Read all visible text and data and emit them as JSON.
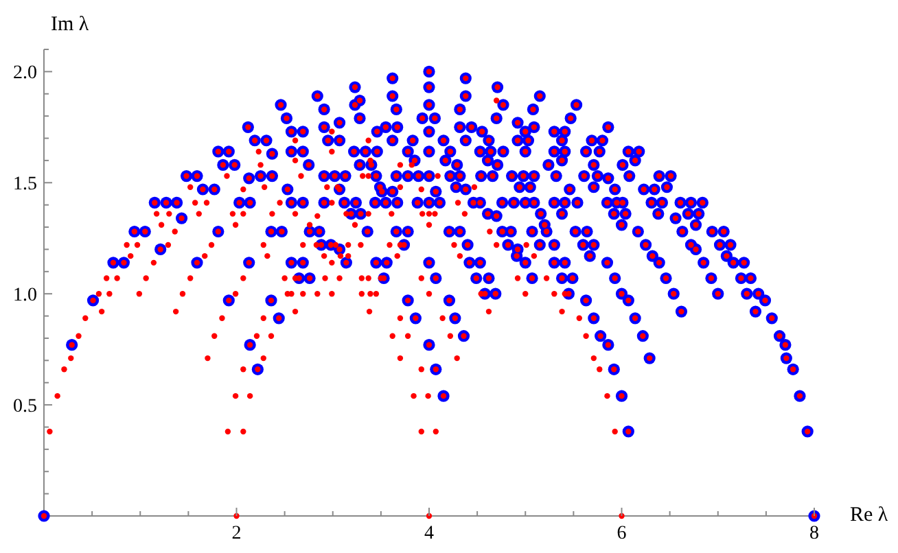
{
  "chart_data": {
    "type": "scatter",
    "xlabel": "Re λ",
    "ylabel": "Im λ",
    "xlim": [
      0,
      8
    ],
    "ylim": [
      0,
      2.1
    ],
    "xticks": [
      {
        "value": 0.5,
        "label": null
      },
      {
        "value": 1,
        "label": null
      },
      {
        "value": 1.5,
        "label": null
      },
      2,
      {
        "value": 2.5,
        "label": null
      },
      {
        "value": 3,
        "label": null
      },
      {
        "value": 3.5,
        "label": null
      },
      4,
      {
        "value": 4.5,
        "label": null
      },
      {
        "value": 5,
        "label": null
      },
      {
        "value": 5.5,
        "label": null
      },
      6,
      {
        "value": 6.5,
        "label": null
      },
      {
        "value": 7,
        "label": null
      },
      {
        "value": 7.5,
        "label": null
      },
      8
    ],
    "yticks": [
      {
        "value": 0.1,
        "label": null
      },
      {
        "value": 0.2,
        "label": null
      },
      {
        "value": 0.3,
        "label": null
      },
      {
        "value": 0.4,
        "label": null
      },
      0.5,
      {
        "value": 0.6,
        "label": null
      },
      {
        "value": 0.7,
        "label": null
      },
      {
        "value": 0.8,
        "label": null
      },
      {
        "value": 0.9,
        "label": null
      },
      {
        "value": 1,
        "label": "1.0"
      },
      {
        "value": 1.1,
        "label": null
      },
      {
        "value": 1.2,
        "label": null
      },
      {
        "value": 1.3,
        "label": null
      },
      {
        "value": 1.4,
        "label": null
      },
      1.5,
      {
        "value": 1.6,
        "label": null
      },
      {
        "value": 1.7,
        "label": null
      },
      {
        "value": 1.8,
        "label": null
      },
      {
        "value": 1.9,
        "label": null
      },
      {
        "value": 2,
        "label": "2.0"
      },
      {
        "value": 2.1,
        "label": null
      }
    ],
    "marker": "circle",
    "series": [
      {
        "color": "#0000ff",
        "x": [
          0,
          0.29,
          0.51,
          0.72,
          0.83,
          0.94,
          1.05,
          1.15,
          1.27,
          1.38,
          1.43,
          1.21,
          1.48,
          1.59,
          1.65,
          1.77,
          1.81,
          1.59,
          1.81,
          1.92,
          1.86,
          1.98,
          2.12,
          2.19,
          2.31,
          2.37,
          2.13,
          2.25,
          2.37,
          2.03,
          2.14,
          2.36,
          2.47,
          2.13,
          1.92,
          2.14,
          2.22,
          2.36,
          2.44,
          2.46,
          2.52,
          2.57,
          2.69,
          2.57,
          2.69,
          2.53,
          2.57,
          2.69,
          2.57,
          2.69,
          2.65,
          2.76,
          2.75,
          2.84,
          2.91,
          2.91,
          2.95,
          3.07,
          3.07,
          2.91,
          3.02,
          3.13,
          2.91,
          3.07,
          3.12,
          3.24,
          2.76,
          2.86,
          2.88,
          2.98,
          3.07,
          3.14,
          3.45,
          3.56,
          3.53,
          3.23,
          3.28,
          3.23,
          3.28,
          3.22,
          3.34,
          3.46,
          3.46,
          3.55,
          3.67,
          3.62,
          3.62,
          3.62,
          3.66,
          3.28,
          3.4,
          3.45,
          3.49,
          3.44,
          3.55,
          3.67,
          3.51,
          3.62,
          3.66,
          3.78,
          3.78,
          3.83,
          3.85,
          3.89,
          3.88,
          4,
          4.11,
          4,
          4.07,
          4,
          4,
          4,
          3.93,
          4.06,
          4,
          4,
          4.15,
          4.17,
          4.22,
          4.22,
          3.66,
          3.78,
          3.74,
          3.19,
          3.29,
          3.36,
          3.78,
          3.86,
          4,
          4.07,
          4,
          4.07,
          4.15,
          4.21,
          4.27,
          4.21,
          4.38,
          4.38,
          4.32,
          4.32,
          4.44,
          4.38,
          4.55,
          4.62,
          4.53,
          4.64,
          4.77,
          4.61,
          4.71,
          4.54,
          4.66,
          4.29,
          4.32,
          4.28,
          4.38,
          4.46,
          4.53,
          4.61,
          4.7,
          4.76,
          4.88,
          5,
          5.09,
          4.76,
          4.71,
          4.77,
          4.7,
          4.92,
          4.92,
          5,
          5.03,
          5,
          5.09,
          5.08,
          5.15,
          4.86,
          4.98,
          5.09,
          4.94,
          5.05,
          4.85,
          4.82,
          4.92,
          4.91,
          5,
          5.07,
          5.07,
          5.15,
          5.16,
          5.2,
          5.22,
          5.3,
          5.3,
          5.41,
          5.38,
          5.3,
          5.41,
          5.38,
          5.24,
          5.32,
          5.47,
          5.53,
          5.46,
          5.3,
          5.41,
          5.54,
          5.38,
          5.63,
          5.69,
          5.8,
          5.71,
          5.61,
          5.71,
          5.77,
          5.52,
          5.64,
          5.6,
          5.71,
          5.67,
          5.3,
          5.41,
          5.38,
          5.49,
          5.45,
          5.63,
          5.71,
          5.78,
          4.36,
          4.32,
          4.4,
          4.42,
          4.53,
          4.49,
          4.62,
          4.58,
          4.69,
          5.86,
          5.75,
          5.86,
          5.93,
          5.85,
          5.95,
          6.01,
          5.92,
          6.04,
          6,
          6.07,
          6.18,
          6.14,
          6.01,
          6.08,
          6.39,
          6.51,
          6.47,
          6.23,
          6.34,
          6.31,
          6.42,
          6.38,
          6.17,
          6.25,
          6.32,
          6.39,
          6.46,
          6.54,
          6.62,
          6.61,
          6.72,
          6.84,
          6.56,
          6.69,
          6.8,
          6.77,
          6.63,
          6.72,
          6.77,
          6.85,
          6.93,
          7,
          6.94,
          7.06,
          7.02,
          7.13,
          7.09,
          7.16,
          7.27,
          7.24,
          7.34,
          7.3,
          5.85,
          5.93,
          6,
          6.07,
          6.14,
          6.22,
          6.29,
          5.86,
          5.92,
          6,
          6.07,
          7.42,
          7.49,
          7.39,
          7.56,
          7.64,
          7.7,
          7.71,
          7.78,
          7.85,
          7.93,
          8
        ],
        "values": [
          0,
          0.77,
          0.97,
          1.14,
          1.14,
          1.28,
          1.28,
          1.41,
          1.41,
          1.41,
          1.34,
          1.2,
          1.53,
          1.53,
          1.47,
          1.47,
          1.28,
          1.14,
          1.64,
          1.64,
          1.58,
          1.58,
          1.75,
          1.69,
          1.69,
          1.63,
          1.52,
          1.53,
          1.53,
          1.41,
          1.41,
          1.28,
          1.28,
          1.14,
          0.97,
          0.77,
          0.66,
          0.97,
          0.89,
          1.85,
          1.79,
          1.73,
          1.73,
          1.64,
          1.64,
          1.47,
          1.41,
          1.41,
          1.14,
          1.14,
          1.07,
          1.07,
          1.58,
          1.89,
          1.83,
          1.75,
          1.69,
          1.69,
          1.77,
          1.53,
          1.53,
          1.53,
          1.41,
          1.47,
          1.41,
          1.41,
          1.28,
          1.28,
          1.22,
          1.22,
          1.2,
          1.14,
          1.14,
          1.14,
          1.07,
          1.93,
          1.87,
          1.85,
          1.79,
          1.64,
          1.64,
          1.64,
          1.73,
          1.75,
          1.75,
          1.69,
          1.97,
          1.89,
          1.83,
          1.58,
          1.58,
          1.53,
          1.48,
          1.41,
          1.41,
          1.41,
          1.46,
          1.46,
          1.53,
          1.53,
          1.64,
          1.69,
          1.6,
          1.53,
          1.41,
          1.41,
          1.41,
          1.53,
          1.46,
          2,
          1.93,
          1.85,
          1.79,
          1.79,
          1.73,
          1.64,
          1.69,
          1.6,
          1.64,
          1.53,
          1.28,
          1.28,
          1.22,
          1.36,
          1.36,
          1.28,
          0.97,
          0.89,
          1.14,
          1.07,
          0.77,
          0.66,
          0.54,
          0.97,
          0.89,
          1.28,
          1.97,
          1.89,
          1.83,
          1.75,
          1.75,
          1.69,
          1.73,
          1.69,
          1.64,
          1.64,
          1.64,
          1.6,
          1.58,
          1.53,
          1.53,
          1.58,
          1.53,
          1.48,
          1.47,
          1.41,
          1.41,
          1.36,
          1.35,
          1.41,
          1.41,
          1.41,
          1.41,
          1.28,
          1.93,
          1.85,
          1.79,
          1.77,
          1.69,
          1.73,
          1.69,
          1.64,
          1.75,
          1.83,
          1.89,
          1.53,
          1.53,
          1.53,
          1.48,
          1.48,
          1.28,
          1.22,
          1.2,
          1.17,
          1.14,
          1.07,
          1.28,
          1.22,
          1.36,
          1.31,
          1.28,
          1.22,
          1.73,
          1.73,
          1.69,
          1.64,
          1.64,
          1.6,
          1.58,
          1.53,
          1.79,
          1.85,
          1.47,
          1.41,
          1.41,
          1.41,
          1.36,
          1.64,
          1.69,
          1.69,
          1.58,
          1.53,
          1.48,
          1.64,
          1.28,
          1.28,
          1.22,
          1.22,
          1.17,
          1.14,
          1.14,
          1.07,
          1.07,
          1,
          0.97,
          0.89,
          0.81,
          0.81,
          1.28,
          1.22,
          1.14,
          1.14,
          1.07,
          1.07,
          1,
          1,
          1.75,
          1.53,
          1.52,
          1.47,
          1.41,
          1.41,
          1.41,
          1.36,
          1.36,
          1.31,
          1.64,
          1.64,
          1.6,
          1.58,
          1.53,
          1.53,
          1.53,
          1.48,
          1.47,
          1.47,
          1.41,
          1.41,
          1.36,
          1.28,
          1.22,
          1.17,
          1.14,
          1.07,
          1,
          0.92,
          1.41,
          1.41,
          1.41,
          1.34,
          1.36,
          1.36,
          1.31,
          1.28,
          1.22,
          1.2,
          1.14,
          1.07,
          1,
          1.28,
          1.28,
          1.22,
          1.22,
          1.17,
          1.14,
          1.14,
          1.07,
          1.07,
          1,
          1.14,
          1.07,
          1,
          0.97,
          0.89,
          0.81,
          0.71,
          0.77,
          0.66,
          0.54,
          0.38,
          1,
          0.97,
          0.92,
          0.89,
          0.81,
          0.77,
          0.71,
          0.66,
          0.54,
          0.38,
          0
        ]
      },
      {
        "color": "#ff0000",
        "x": [
          0,
          0.29,
          0.51,
          0.72,
          0.83,
          0.94,
          1.05,
          1.15,
          1.27,
          1.38,
          1.43,
          1.21,
          1.48,
          1.59,
          1.65,
          1.77,
          1.81,
          1.59,
          1.81,
          1.92,
          1.86,
          1.98,
          2.12,
          2.19,
          2.31,
          2.37,
          2.13,
          2.25,
          2.37,
          2.03,
          2.14,
          2.36,
          2.47,
          2.13,
          1.92,
          2.14,
          2.22,
          2.36,
          2.44,
          2.46,
          2.52,
          2.57,
          2.69,
          2.57,
          2.69,
          2.53,
          2.57,
          2.69,
          2.57,
          2.69,
          2.65,
          2.76,
          2.75,
          2.84,
          2.91,
          2.91,
          2.95,
          3.07,
          3.07,
          2.91,
          3.02,
          3.13,
          2.91,
          3.07,
          3.12,
          3.24,
          2.76,
          2.86,
          2.88,
          2.98,
          3.07,
          3.14,
          3.45,
          3.56,
          3.53,
          3.23,
          3.28,
          3.23,
          3.28,
          3.22,
          3.34,
          3.46,
          3.46,
          3.55,
          3.67,
          3.62,
          3.62,
          3.62,
          3.66,
          3.28,
          3.4,
          3.45,
          3.49,
          3.44,
          3.55,
          3.67,
          3.51,
          3.62,
          3.66,
          3.78,
          3.78,
          3.83,
          3.85,
          3.89,
          3.88,
          4,
          4.11,
          4,
          4.07,
          4,
          4,
          4,
          3.93,
          4.06,
          4,
          4,
          4.15,
          4.17,
          4.22,
          4.22,
          3.66,
          3.78,
          3.74,
          3.19,
          3.29,
          3.36,
          3.78,
          3.86,
          4,
          4.07,
          4,
          4.07,
          4.15,
          4.21,
          4.27,
          4.21,
          4.38,
          4.38,
          4.32,
          4.32,
          4.44,
          4.38,
          4.55,
          4.62,
          4.53,
          4.64,
          4.77,
          4.61,
          4.71,
          4.54,
          4.66,
          4.29,
          4.32,
          4.28,
          4.38,
          4.46,
          4.53,
          4.61,
          4.7,
          4.76,
          4.88,
          5,
          5.09,
          4.76,
          4.71,
          4.77,
          4.7,
          4.92,
          4.92,
          5,
          5.03,
          5,
          5.09,
          5.08,
          5.15,
          4.86,
          4.98,
          5.09,
          4.94,
          5.05,
          4.85,
          4.82,
          4.92,
          4.91,
          5,
          5.07,
          5.07,
          5.15,
          5.16,
          5.2,
          5.22,
          5.3,
          5.3,
          5.41,
          5.38,
          5.3,
          5.41,
          5.38,
          5.24,
          5.32,
          5.47,
          5.53,
          5.46,
          5.3,
          5.41,
          5.54,
          5.38,
          5.63,
          5.69,
          5.8,
          5.71,
          5.61,
          5.71,
          5.77,
          5.52,
          5.64,
          5.6,
          5.71,
          5.67,
          5.3,
          5.41,
          5.38,
          5.49,
          5.45,
          5.63,
          5.71,
          5.78,
          4.36,
          4.32,
          4.4,
          4.42,
          4.53,
          4.49,
          4.62,
          4.58,
          4.69,
          5.86,
          5.75,
          5.86,
          5.93,
          5.85,
          5.95,
          6.01,
          5.92,
          6.04,
          6,
          6.07,
          6.18,
          6.14,
          6.01,
          6.08,
          6.39,
          6.51,
          6.47,
          6.23,
          6.34,
          6.31,
          6.42,
          6.38,
          6.17,
          6.25,
          6.32,
          6.39,
          6.46,
          6.54,
          6.62,
          6.61,
          6.72,
          6.84,
          6.56,
          6.69,
          6.8,
          6.77,
          6.63,
          6.72,
          6.77,
          6.85,
          6.93,
          7,
          6.94,
          7.06,
          7.02,
          7.13,
          7.09,
          7.16,
          7.27,
          7.24,
          7.34,
          7.3,
          5.85,
          5.93,
          6,
          6.07,
          6.14,
          6.22,
          6.29,
          5.86,
          5.92,
          6,
          6.07,
          7.42,
          7.49,
          7.39,
          7.56,
          7.64,
          7.7,
          7.71,
          7.78,
          7.85,
          7.93,
          8,
          0.06,
          0.14,
          0.21,
          0.28,
          0.36,
          0.43,
          0.57,
          0.6,
          0.65,
          0.68,
          0.76,
          0.86,
          0.9,
          0.97,
          0.99,
          1.06,
          1.14,
          1.17,
          1.3,
          1.22,
          1.36,
          1.29,
          1.52,
          1.57,
          1.61,
          1.69,
          1.74,
          1.67,
          1.52,
          1.44,
          1.37,
          1.9,
          2.23,
          2.25,
          2.07,
          2.29,
          1.96,
          2.07,
          1.99,
          2.37,
          2.28,
          2.32,
          2.07,
          1.99,
          1.85,
          1.77,
          1.7,
          2.21,
          2.28,
          2.07,
          1.99,
          2.14,
          1.91,
          2.07,
          2,
          2.28,
          2.36,
          2.61,
          2.61,
          2.67,
          2.45,
          2.61,
          2.69,
          2.61,
          2.5,
          2.53,
          2.57,
          2.69,
          2.61,
          2.99,
          2.99,
          2.94,
          2.99,
          3.05,
          2.84,
          2.76,
          2.83,
          2.91,
          3.03,
          3.08,
          2.99,
          2.92,
          3.07,
          2.84,
          2.99,
          3.3,
          3.39,
          3.45,
          3.38,
          3.37,
          3.3,
          3.5,
          3.29,
          3.16,
          3.16,
          3.37,
          3.39,
          3.37,
          3.31,
          3.61,
          3.7,
          3.7,
          3.82,
          3.92,
          3.93,
          4,
          4.06,
          4,
          4.09,
          3.7,
          3.59,
          3.67,
          3.14,
          3.37,
          3.23,
          3.7,
          3.78,
          3.62,
          3.7,
          3.92,
          3.84,
          3.99,
          3.92,
          4.07,
          4,
          3.92,
          4,
          4.14,
          4.22,
          4.29,
          4.3,
          4.37,
          4.47,
          4.63,
          4.7,
          4.32,
          4.26,
          4.54,
          4.62,
          4.92,
          5,
          5.01,
          5.09,
          5.22,
          5.3,
          5.41,
          5.38,
          5.56,
          5.63,
          5.71,
          5.77,
          4.7,
          5.85,
          5.93,
          6
        ],
        "values": [
          0,
          0.77,
          0.97,
          1.14,
          1.14,
          1.28,
          1.28,
          1.41,
          1.41,
          1.41,
          1.34,
          1.2,
          1.53,
          1.53,
          1.47,
          1.47,
          1.28,
          1.14,
          1.64,
          1.64,
          1.58,
          1.58,
          1.75,
          1.69,
          1.69,
          1.63,
          1.52,
          1.53,
          1.53,
          1.41,
          1.41,
          1.28,
          1.28,
          1.14,
          0.97,
          0.77,
          0.66,
          0.97,
          0.89,
          1.85,
          1.79,
          1.73,
          1.73,
          1.64,
          1.64,
          1.47,
          1.41,
          1.41,
          1.14,
          1.14,
          1.07,
          1.07,
          1.58,
          1.89,
          1.83,
          1.75,
          1.69,
          1.69,
          1.77,
          1.53,
          1.53,
          1.53,
          1.41,
          1.47,
          1.41,
          1.41,
          1.28,
          1.28,
          1.22,
          1.22,
          1.2,
          1.14,
          1.14,
          1.14,
          1.07,
          1.93,
          1.87,
          1.85,
          1.79,
          1.64,
          1.64,
          1.64,
          1.73,
          1.75,
          1.75,
          1.69,
          1.97,
          1.89,
          1.83,
          1.58,
          1.58,
          1.53,
          1.48,
          1.41,
          1.41,
          1.41,
          1.46,
          1.46,
          1.53,
          1.53,
          1.64,
          1.69,
          1.6,
          1.53,
          1.41,
          1.41,
          1.41,
          1.53,
          1.46,
          2,
          1.93,
          1.85,
          1.79,
          1.79,
          1.73,
          1.64,
          1.69,
          1.6,
          1.64,
          1.53,
          1.28,
          1.28,
          1.22,
          1.36,
          1.36,
          1.28,
          0.97,
          0.89,
          1.14,
          1.07,
          0.77,
          0.66,
          0.54,
          0.97,
          0.89,
          1.28,
          1.97,
          1.89,
          1.83,
          1.75,
          1.75,
          1.69,
          1.73,
          1.69,
          1.64,
          1.64,
          1.64,
          1.6,
          1.58,
          1.53,
          1.53,
          1.58,
          1.53,
          1.48,
          1.47,
          1.41,
          1.41,
          1.36,
          1.35,
          1.41,
          1.41,
          1.41,
          1.41,
          1.28,
          1.93,
          1.85,
          1.79,
          1.77,
          1.69,
          1.73,
          1.69,
          1.64,
          1.75,
          1.83,
          1.89,
          1.53,
          1.53,
          1.53,
          1.48,
          1.48,
          1.28,
          1.22,
          1.2,
          1.17,
          1.14,
          1.07,
          1.28,
          1.22,
          1.36,
          1.31,
          1.28,
          1.22,
          1.73,
          1.73,
          1.69,
          1.64,
          1.64,
          1.6,
          1.58,
          1.53,
          1.79,
          1.85,
          1.47,
          1.41,
          1.41,
          1.41,
          1.36,
          1.64,
          1.69,
          1.69,
          1.58,
          1.53,
          1.48,
          1.64,
          1.28,
          1.28,
          1.22,
          1.22,
          1.17,
          1.14,
          1.14,
          1.07,
          1.07,
          1,
          0.97,
          0.89,
          0.81,
          0.81,
          1.28,
          1.22,
          1.14,
          1.14,
          1.07,
          1.07,
          1,
          1,
          1.75,
          1.53,
          1.52,
          1.47,
          1.41,
          1.41,
          1.41,
          1.36,
          1.36,
          1.31,
          1.64,
          1.64,
          1.6,
          1.58,
          1.53,
          1.53,
          1.53,
          1.48,
          1.47,
          1.47,
          1.41,
          1.41,
          1.36,
          1.28,
          1.22,
          1.17,
          1.14,
          1.07,
          1,
          0.92,
          1.41,
          1.41,
          1.41,
          1.34,
          1.36,
          1.36,
          1.31,
          1.28,
          1.22,
          1.2,
          1.14,
          1.07,
          1,
          1.28,
          1.28,
          1.22,
          1.22,
          1.17,
          1.14,
          1.14,
          1.07,
          1.07,
          1,
          1.14,
          1.07,
          1,
          0.97,
          0.89,
          0.81,
          0.71,
          0.77,
          0.66,
          0.54,
          0.38,
          1,
          0.97,
          0.92,
          0.89,
          0.81,
          0.77,
          0.71,
          0.66,
          0.54,
          0.38,
          0,
          0.38,
          0.54,
          0.66,
          0.71,
          0.81,
          0.89,
          1,
          0.92,
          1.07,
          1,
          1.07,
          1.22,
          1.17,
          1.22,
          1,
          1.07,
          1.14,
          1.36,
          1.36,
          1.31,
          1.28,
          1.22,
          1.48,
          1.41,
          1.36,
          1.41,
          1.22,
          1.17,
          1.07,
          1,
          0.92,
          1.53,
          1.64,
          1.58,
          1.47,
          1.48,
          1.36,
          1.36,
          1.31,
          1.36,
          1.22,
          1.17,
          1.07,
          1,
          0.89,
          0.81,
          0.71,
          0.81,
          0.71,
          0.66,
          0.54,
          0.54,
          0.38,
          0.38,
          0,
          0.89,
          0.81,
          1.69,
          1.6,
          1.53,
          1.41,
          1.36,
          1.22,
          1.07,
          1.07,
          1,
          1,
          1,
          0.92,
          1.73,
          1.64,
          1.48,
          1.41,
          1.48,
          1.35,
          1.31,
          1.22,
          1.17,
          1.22,
          1.17,
          1.14,
          1.07,
          1.07,
          1,
          1,
          1,
          1,
          1,
          0.92,
          1.07,
          1.07,
          1.07,
          1.22,
          1.22,
          1.17,
          1.69,
          1.6,
          1.53,
          1.53,
          1.36,
          1.58,
          1.48,
          1.58,
          1.47,
          1.36,
          1.36,
          1.36,
          1.31,
          1.53,
          1.22,
          1.22,
          1.17,
          1.36,
          1.36,
          1.31,
          0.89,
          0.81,
          0.81,
          0.71,
          0.66,
          0.54,
          0.54,
          0.38,
          0.38,
          0,
          1.07,
          1,
          0.89,
          0.81,
          0.71,
          1.41,
          1.36,
          1.48,
          1.28,
          1.22,
          1.17,
          1.22,
          1,
          0.92,
          1.07,
          1,
          1.22,
          1.17,
          1.07,
          1,
          1,
          0.92,
          0.89,
          0.81,
          0.71,
          0.66,
          1.87,
          0.54,
          0.38,
          0
        ]
      }
    ]
  }
}
